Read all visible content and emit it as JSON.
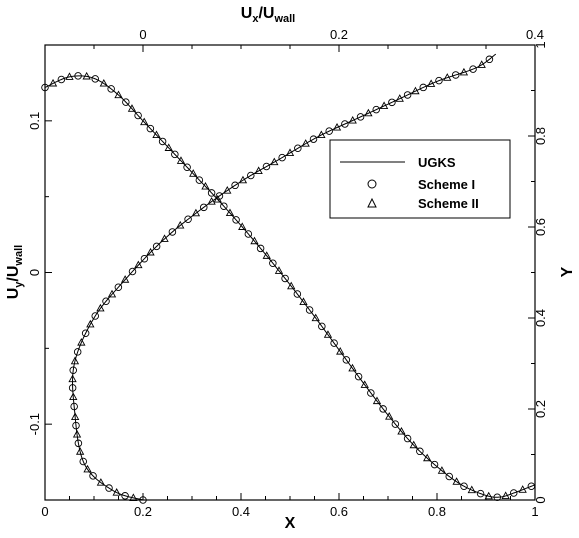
{
  "chart_data": {
    "type": "line",
    "axes": {
      "bottom": {
        "label": "X",
        "range": [
          0,
          1
        ],
        "ticks": [
          0,
          0.2,
          0.4,
          0.6,
          0.8,
          1
        ],
        "tick_labels": [
          "0",
          "0.2",
          "0.4",
          "0.6",
          "0.8",
          "1"
        ]
      },
      "left": {
        "label_main": "U",
        "label_sub1": "y",
        "label_slash": "/U",
        "label_sub2": "wall",
        "range": [
          -0.15,
          0.15
        ],
        "ticks": [
          -0.1,
          0,
          0.1
        ],
        "tick_labels": [
          "-0.1",
          "0",
          "0.1"
        ]
      },
      "top": {
        "label_main": "U",
        "label_sub1": "x",
        "label_slash": "/U",
        "label_sub2": "wall",
        "range": [
          -0.1,
          0.4
        ],
        "ticks": [
          0,
          0.2,
          0.4
        ],
        "tick_labels": [
          "0",
          "0.2",
          "0.4"
        ]
      },
      "right": {
        "label": "Y",
        "range": [
          0,
          1
        ],
        "ticks": [
          0,
          0.2,
          0.4,
          0.6,
          0.8,
          1
        ],
        "tick_labels": [
          "0",
          "0.2",
          "0.4",
          "0.6",
          "0.8",
          "1"
        ]
      }
    },
    "legend": {
      "position": "upper-right",
      "entries": [
        {
          "label": "UGKS",
          "marker": "line"
        },
        {
          "label": "Scheme I",
          "marker": "circle"
        },
        {
          "label": "Scheme II",
          "marker": "triangle"
        }
      ]
    },
    "series": [
      {
        "name": "Uy/Uwall vs X",
        "axes": [
          "bottom",
          "left"
        ],
        "x": [
          0.0,
          0.05,
          0.1,
          0.15,
          0.2,
          0.25,
          0.3,
          0.35,
          0.4,
          0.45,
          0.5,
          0.55,
          0.6,
          0.65,
          0.7,
          0.75,
          0.8,
          0.85,
          0.9,
          0.93,
          0.96,
          1.0
        ],
        "y": [
          0.122,
          0.129,
          0.128,
          0.117,
          0.1,
          0.083,
          0.066,
          0.049,
          0.031,
          0.012,
          -0.008,
          -0.029,
          -0.051,
          -0.073,
          -0.094,
          -0.113,
          -0.128,
          -0.14,
          -0.147,
          -0.148,
          -0.145,
          -0.14
        ]
      },
      {
        "name": "Y vs Ux/Uwall",
        "axes": [
          "top",
          "right"
        ],
        "x": [
          0.0,
          -0.03,
          -0.06,
          -0.07,
          -0.07,
          -0.05,
          -0.02,
          0.02,
          0.06,
          0.1,
          0.14,
          0.18,
          0.22,
          0.26,
          0.3,
          0.34,
          0.36
        ],
        "y": [
          0.0,
          0.02,
          0.08,
          0.2,
          0.3,
          0.4,
          0.48,
          0.57,
          0.64,
          0.7,
          0.75,
          0.8,
          0.84,
          0.88,
          0.92,
          0.95,
          0.98
        ]
      }
    ]
  }
}
